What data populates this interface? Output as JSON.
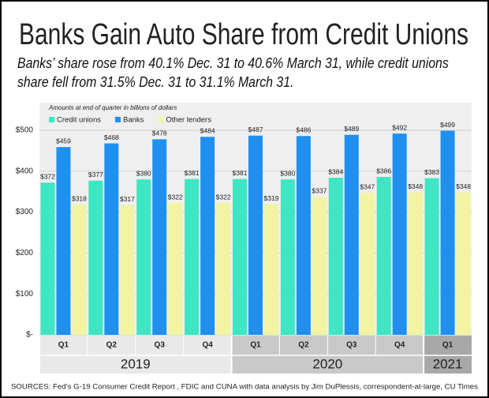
{
  "chart_data": {
    "type": "bar",
    "title": "Banks Gain Auto Share from Credit Unions",
    "subtitle": "Banks’ share rose from 40.1% Dec. 31 to 40.6% March 31, while credit unions share fell from 31.5% Dec. 31 to 31.1% March 31.",
    "note": "Amounts at end of quarter in billions of dollars",
    "source": "SOURCES: Fed’s G-19 Consumer Credit Report , FDIC and CUNA  with data analysis by Jim DuPlessis, correspondent-at-large, CU Times",
    "categories": [
      "Q1",
      "Q2",
      "Q3",
      "Q4",
      "Q1",
      "Q2",
      "Q3",
      "Q4",
      "Q1"
    ],
    "x_groups": [
      {
        "label": "2019",
        "categories": [
          "Q1",
          "Q2",
          "Q3",
          "Q4"
        ]
      },
      {
        "label": "2020",
        "categories": [
          "Q1",
          "Q2",
          "Q3",
          "Q4"
        ]
      },
      {
        "label": "2021",
        "categories": [
          "Q1"
        ]
      }
    ],
    "series": [
      {
        "name": "Credit unions",
        "color": "#3ee6c3",
        "values": [
          372,
          377,
          380,
          381,
          381,
          380,
          384,
          386,
          383
        ],
        "value_labels": [
          "$372",
          "$377",
          "$380",
          "$381",
          "$381",
          "$380",
          "$384",
          "$386",
          "$383"
        ]
      },
      {
        "name": "Banks",
        "color": "#1f8ff0",
        "values": [
          459,
          468,
          478,
          484,
          487,
          486,
          489,
          492,
          499
        ],
        "value_labels": [
          "$459",
          "$468",
          "$478",
          "$484",
          "$487",
          "$486",
          "$489",
          "$492",
          "$499"
        ]
      },
      {
        "name": "Other lenders",
        "color": "#f2f4a2",
        "values": [
          318,
          317,
          322,
          322,
          319,
          337,
          347,
          348,
          348
        ],
        "value_labels": [
          "$318",
          "$317",
          "$322",
          "$322",
          "$319",
          "$337",
          "$347",
          "$348",
          "$348"
        ]
      }
    ],
    "ylim": [
      0,
      500
    ],
    "yticks": [
      {
        "value": 0,
        "label": "$-"
      },
      {
        "value": 100,
        "label": "$100"
      },
      {
        "value": 200,
        "label": "$200"
      },
      {
        "value": 300,
        "label": "$300"
      },
      {
        "value": 400,
        "label": "$400"
      },
      {
        "value": 500,
        "label": "$500"
      }
    ],
    "grid": true,
    "legend": "top-left"
  }
}
